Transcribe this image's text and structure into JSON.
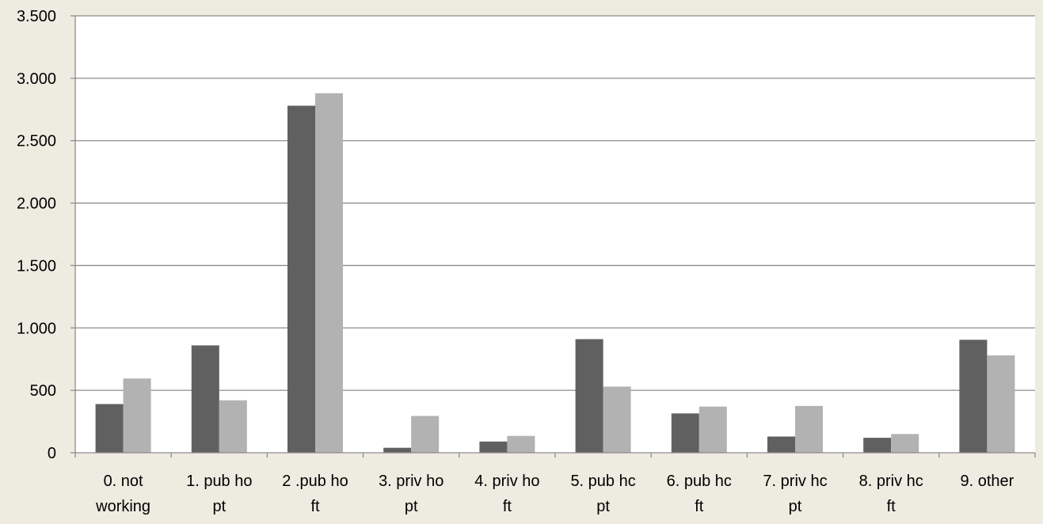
{
  "chart_data": {
    "type": "bar",
    "title": "",
    "xlabel": "",
    "ylabel": "",
    "ylim": [
      0,
      3500
    ],
    "yticks": [
      0,
      500,
      1000,
      1500,
      2000,
      2500,
      3000,
      3500
    ],
    "ytick_labels": [
      "0",
      "500",
      "1.000",
      "1.500",
      "2.000",
      "2.500",
      "3.000",
      "3.500"
    ],
    "grid": true,
    "legend": "none",
    "categories": [
      [
        "0. not",
        "working"
      ],
      [
        "1. pub ho",
        "pt"
      ],
      [
        "2 .pub ho",
        "ft"
      ],
      [
        "3. priv ho",
        "pt"
      ],
      [
        "4. priv ho",
        "ft"
      ],
      [
        "5. pub hc",
        "pt"
      ],
      [
        "6. pub hc",
        "ft"
      ],
      [
        "7. priv hc",
        "pt"
      ],
      [
        "8. priv hc",
        "ft"
      ],
      [
        "9. other",
        ""
      ]
    ],
    "series": [
      {
        "color": "#606060",
        "values": [
          390,
          860,
          2780,
          40,
          90,
          910,
          315,
          130,
          120,
          905
        ]
      },
      {
        "color": "#b2b2b2",
        "values": [
          595,
          420,
          2880,
          295,
          135,
          530,
          370,
          375,
          150,
          780
        ]
      }
    ],
    "colors": {
      "background": "#eeebe1",
      "plot_area": "#ffffff",
      "grid": "#8c8c8c",
      "axis": "#8c8c8c"
    }
  }
}
